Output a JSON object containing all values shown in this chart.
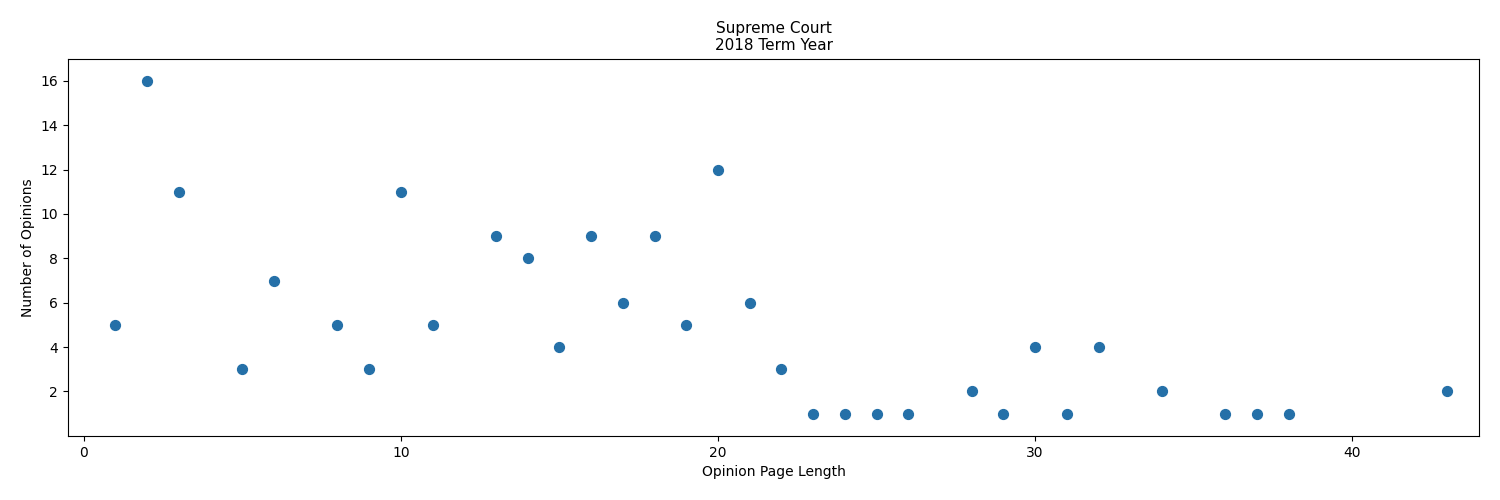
{
  "title": "Supreme Court\n2018 Term Year",
  "xlabel": "Opinion Page Length",
  "ylabel": "Number of Opinions",
  "x": [
    1,
    2,
    3,
    5,
    6,
    8,
    9,
    10,
    11,
    13,
    14,
    15,
    16,
    17,
    18,
    19,
    20,
    21,
    22,
    23,
    24,
    25,
    26,
    28,
    29,
    30,
    31,
    32,
    34,
    36,
    37,
    38,
    43
  ],
  "y": [
    5,
    16,
    11,
    3,
    7,
    5,
    3,
    11,
    5,
    9,
    8,
    4,
    9,
    6,
    9,
    5,
    12,
    6,
    3,
    1,
    1,
    1,
    1,
    2,
    1,
    4,
    1,
    4,
    2,
    1,
    1,
    1,
    2
  ],
  "dot_color": "#2570a8",
  "dot_size": 50,
  "xlim": [
    -0.5,
    44
  ],
  "ylim": [
    0,
    17
  ],
  "figsize": [
    15.0,
    5.0
  ],
  "dpi": 100
}
